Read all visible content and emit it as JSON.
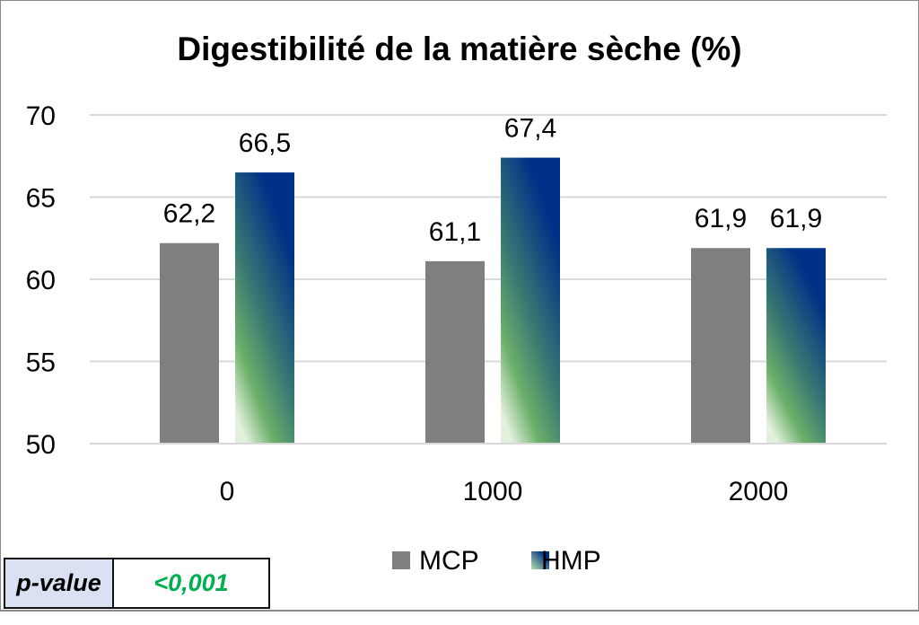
{
  "chart_data": {
    "type": "bar",
    "title": "Digestibilité de la matière sèche (%)",
    "categories": [
      "0",
      "1000",
      "2000"
    ],
    "series": [
      {
        "name": "MCP",
        "values": [
          62.2,
          61.1,
          61.9
        ],
        "labels": [
          "62,2",
          "61,1",
          "61,9"
        ],
        "color": "#7f7f7f"
      },
      {
        "name": "HMP",
        "values": [
          66.5,
          67.4,
          61.9
        ],
        "labels": [
          "66,5",
          "67,4",
          "61,9"
        ],
        "color": "#003087",
        "gradient": [
          "#003087",
          "#70b56a",
          "#e2f0dc"
        ]
      }
    ],
    "ylim": [
      50,
      70
    ],
    "yticks": [
      "50",
      "55",
      "60",
      "65",
      "70"
    ],
    "grid": true,
    "legend": "bottom",
    "xlabel": "",
    "ylabel": ""
  },
  "pvalue": {
    "label": "p-value",
    "value": "<0,001",
    "value_color": "#00b050"
  }
}
